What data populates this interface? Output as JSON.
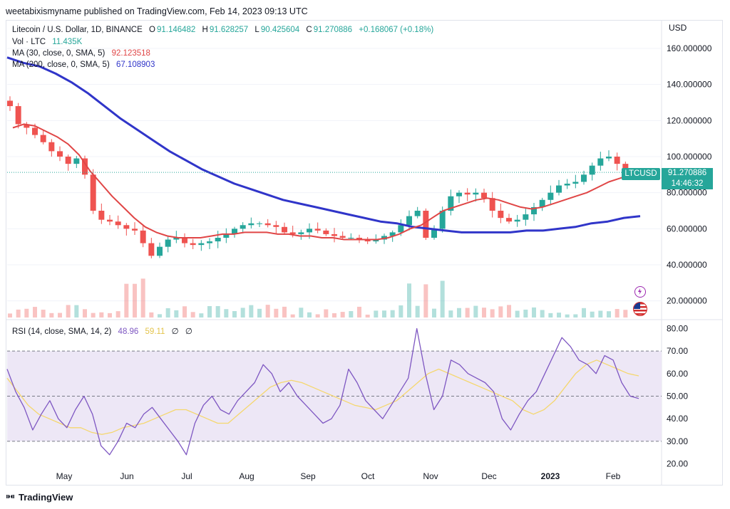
{
  "publisher": "weetabixismyname published on TradingView.com, Feb 14, 2023 09:13 UTC",
  "legend": {
    "symbol": "Litecoin / U.S. Dollar, 1D, BINANCE",
    "o_label": "O",
    "o": "91.146482",
    "h_label": "H",
    "h": "91.628257",
    "l_label": "L",
    "l": "90.425604",
    "c_label": "C",
    "c": "91.270886",
    "change": "+0.168067 (+0.18%)",
    "vol_label": "Vol · LTC",
    "vol": "11.435K",
    "ma30_label": "MA (30, close, 0, SMA, 5)",
    "ma30": "92.123518",
    "ma200_label": "MA (200, close, 0, SMA, 5)",
    "ma200": "67.108903",
    "rsi_label": "RSI (14, close, SMA, 14, 2)",
    "rsi": "48.96",
    "rsi_sma": "59.11",
    "rsi_extra1": "∅",
    "rsi_extra2": "∅"
  },
  "currency": "USD",
  "last_price": {
    "symbol": "LTCUSD",
    "price": "91.270886",
    "countdown": "14:46:32"
  },
  "brand": "TradingView",
  "colors": {
    "up": "#26a69a",
    "down": "#ef5350",
    "ma30": "#e04646",
    "ma200": "#3035c9",
    "rsi": "#7e57c2",
    "rsi_sma": "#f5d76e",
    "rsi_band": "#ede7f6"
  },
  "chart_data": [
    {
      "type": "candlestick",
      "title": "Litecoin / U.S. Dollar, 1D, BINANCE",
      "ylim": [
        10,
        175
      ],
      "y_ticks": [
        "160.000000",
        "140.000000",
        "120.000000",
        "100.000000",
        "80.000000",
        "60.000000",
        "40.000000",
        "20.000000"
      ],
      "y_tick_values": [
        160,
        140,
        120,
        100,
        80,
        60,
        40,
        20
      ],
      "x_ticks": [
        "May",
        "Jun",
        "Jul",
        "Aug",
        "Sep",
        "Oct",
        "Nov",
        "Dec",
        "2023",
        "Feb"
      ],
      "close_series_sampled": [
        128,
        118,
        116,
        112,
        108,
        103,
        100,
        96,
        99,
        90,
        70,
        65,
        64,
        62,
        60,
        59,
        52,
        45,
        50,
        54,
        55,
        52,
        51,
        52,
        53,
        55,
        57,
        60,
        62,
        63,
        63,
        62,
        61,
        58,
        57,
        58,
        60,
        59,
        57,
        56,
        55,
        55,
        54,
        53,
        54,
        56,
        58,
        62,
        67,
        70,
        55,
        60,
        70,
        78,
        80,
        79,
        80,
        77,
        70,
        66,
        64,
        65,
        68,
        72,
        76,
        80,
        84,
        85,
        86,
        90,
        95,
        99,
        100,
        96,
        91
      ],
      "ma30_sampled": [
        116,
        118,
        117,
        114,
        111,
        107,
        101,
        92,
        85,
        78,
        72,
        66,
        61,
        58,
        56,
        55,
        55,
        55,
        56,
        57,
        57,
        58,
        58,
        58,
        57,
        57,
        56,
        56,
        55,
        55,
        54,
        54,
        54,
        54,
        55,
        57,
        60,
        62,
        66,
        70,
        72,
        74,
        76,
        77,
        76,
        74,
        72,
        71,
        72,
        74,
        76,
        78,
        80,
        83,
        86,
        88,
        90
      ],
      "ma200_sampled": [
        155,
        152,
        150,
        146,
        141,
        135,
        128,
        121,
        115,
        109,
        103,
        98,
        93,
        89,
        85,
        82,
        79,
        76,
        74,
        72,
        70,
        68,
        66,
        64,
        63,
        61,
        60,
        59,
        58,
        58,
        58,
        58,
        59,
        59,
        60,
        61,
        63,
        64,
        66,
        67
      ],
      "series": [
        {
          "name": "MA (30, close, 0, SMA, 5)",
          "last": 92.123518
        },
        {
          "name": "MA (200, close, 0, SMA, 5)",
          "last": 67.108903
        }
      ],
      "last_close": 91.270886
    },
    {
      "type": "line",
      "title": "RSI (14, close, SMA, 14, 2)",
      "ylim": [
        17,
        83
      ],
      "y_ticks": [
        "80.00",
        "70.00",
        "60.00",
        "50.00",
        "40.00",
        "30.00",
        "20.00"
      ],
      "y_tick_values": [
        80,
        70,
        60,
        50,
        40,
        30,
        20
      ],
      "bands": [
        30,
        50,
        70
      ],
      "rsi_sampled": [
        62,
        52,
        45,
        35,
        42,
        48,
        40,
        36,
        44,
        50,
        42,
        28,
        24,
        30,
        38,
        36,
        42,
        45,
        40,
        35,
        30,
        24,
        38,
        46,
        50,
        44,
        42,
        48,
        52,
        56,
        64,
        60,
        52,
        56,
        50,
        46,
        42,
        38,
        40,
        46,
        62,
        56,
        48,
        44,
        40,
        46,
        52,
        58,
        80,
        60,
        44,
        50,
        66,
        64,
        60,
        58,
        56,
        52,
        40,
        35,
        42,
        48,
        52,
        60,
        68,
        76,
        72,
        66,
        64,
        60,
        68,
        66,
        56,
        50,
        49
      ],
      "rsi_sma_sampled": [
        58,
        52,
        46,
        42,
        40,
        38,
        36,
        36,
        34,
        33,
        34,
        36,
        37,
        38,
        40,
        42,
        44,
        44,
        42,
        40,
        38,
        38,
        42,
        46,
        50,
        54,
        56,
        57,
        56,
        54,
        52,
        50,
        48,
        46,
        45,
        44,
        46,
        48,
        52,
        56,
        60,
        62,
        60,
        58,
        56,
        54,
        52,
        50,
        48,
        44,
        42,
        44,
        48,
        54,
        60,
        64,
        66,
        64,
        62,
        60,
        59
      ],
      "last_rsi": 48.96,
      "last_sma": 59.11
    }
  ]
}
